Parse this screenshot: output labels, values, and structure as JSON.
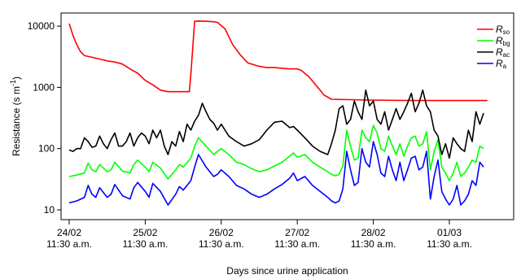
{
  "chart_data": {
    "type": "line",
    "xlabel": "Days since urine application",
    "ylabel": "Resistance (s m",
    "ylabel_sup": "-1",
    "ylabel_close": ")",
    "yscale": "log",
    "ylim": [
      8,
      12000
    ],
    "xlim": [
      -0.05,
      5.5
    ],
    "grid": false,
    "legend_position": "top-right",
    "x_ticks": [
      {
        "pos": 0,
        "date": "24/02",
        "time": "11:30 a.m."
      },
      {
        "pos": 1,
        "date": "25/02",
        "time": "11:30 a.m."
      },
      {
        "pos": 2,
        "date": "26/02",
        "time": "11:30 a.m."
      },
      {
        "pos": 3,
        "date": "27/02",
        "time": "11:30 a.m."
      },
      {
        "pos": 4,
        "date": "28/02",
        "time": "11:30 a.m."
      },
      {
        "pos": 5,
        "date": "01/03",
        "time": "11:30 a.m."
      }
    ],
    "y_ticks": [
      10,
      100,
      1000,
      10000
    ],
    "y_tick_labels": [
      "10",
      "100",
      "1000",
      "10000"
    ],
    "series": [
      {
        "name": "R",
        "subscript": "so",
        "color": "#ff0000",
        "x": [
          0.0,
          0.05,
          0.1,
          0.15,
          0.2,
          0.3,
          0.4,
          0.5,
          0.6,
          0.7,
          0.8,
          0.9,
          1.0,
          1.1,
          1.2,
          1.3,
          1.35,
          1.4,
          1.5,
          1.58,
          1.6,
          1.65,
          1.7,
          1.8,
          1.9,
          1.95,
          2.05,
          2.15,
          2.25,
          2.35,
          2.5,
          2.6,
          2.7,
          2.8,
          2.9,
          3.0,
          3.05,
          3.15,
          3.3,
          3.35,
          3.45,
          3.7,
          3.9,
          4.5,
          5.5
        ],
        "y": [
          11000,
          7000,
          5000,
          3800,
          3300,
          3100,
          2900,
          2700,
          2600,
          2400,
          2000,
          1700,
          1300,
          1100,
          900,
          850,
          850,
          850,
          850,
          850,
          1600,
          12000,
          12100,
          12000,
          11800,
          11500,
          9000,
          5000,
          3400,
          2500,
          2200,
          2100,
          2100,
          2050,
          2000,
          2000,
          1900,
          1500,
          900,
          750,
          640,
          630,
          620,
          610,
          610
        ]
      },
      {
        "name": "R",
        "subscript": "bg",
        "color": "#00ff00",
        "x": [
          0.0,
          0.1,
          0.2,
          0.25,
          0.3,
          0.35,
          0.4,
          0.5,
          0.55,
          0.6,
          0.7,
          0.8,
          0.85,
          0.9,
          1.0,
          1.05,
          1.1,
          1.2,
          1.3,
          1.4,
          1.45,
          1.5,
          1.6,
          1.65,
          1.7,
          1.8,
          1.9,
          1.95,
          2.0,
          2.1,
          2.2,
          2.3,
          2.4,
          2.5,
          2.6,
          2.7,
          2.8,
          2.9,
          2.95,
          3.0,
          3.1,
          3.2,
          3.3,
          3.4,
          3.45,
          3.5,
          3.55,
          3.6,
          3.65,
          3.7,
          3.75,
          3.8,
          3.85,
          3.9,
          3.95,
          4.0,
          4.05,
          4.1,
          4.15,
          4.2,
          4.25,
          4.3,
          4.35,
          4.4,
          4.45,
          4.5,
          4.55,
          4.6,
          4.65,
          4.7,
          4.75,
          4.8,
          4.85,
          4.9,
          4.95,
          5.0,
          5.05,
          5.1,
          5.15,
          5.2,
          5.25,
          5.3,
          5.35,
          5.4,
          5.45
        ],
        "y": [
          35,
          37,
          40,
          58,
          45,
          42,
          55,
          42,
          45,
          60,
          43,
          40,
          55,
          65,
          50,
          42,
          60,
          48,
          32,
          45,
          55,
          50,
          70,
          110,
          150,
          110,
          80,
          90,
          100,
          80,
          60,
          55,
          47,
          42,
          45,
          52,
          60,
          75,
          85,
          72,
          80,
          60,
          50,
          42,
          38,
          36,
          38,
          52,
          200,
          110,
          65,
          70,
          200,
          150,
          130,
          240,
          180,
          100,
          90,
          160,
          110,
          80,
          120,
          75,
          110,
          150,
          160,
          110,
          120,
          190,
          45,
          90,
          140,
          50,
          40,
          30,
          40,
          60,
          35,
          40,
          50,
          65,
          60,
          110,
          100
        ]
      },
      {
        "name": "R",
        "subscript": "ac",
        "color": "#000000",
        "x": [
          0.0,
          0.05,
          0.1,
          0.15,
          0.2,
          0.25,
          0.3,
          0.35,
          0.4,
          0.45,
          0.5,
          0.55,
          0.6,
          0.65,
          0.7,
          0.75,
          0.8,
          0.85,
          0.9,
          0.95,
          1.0,
          1.05,
          1.1,
          1.15,
          1.2,
          1.25,
          1.3,
          1.35,
          1.4,
          1.45,
          1.5,
          1.55,
          1.6,
          1.65,
          1.7,
          1.75,
          1.8,
          1.85,
          1.9,
          1.95,
          2.0,
          2.1,
          2.2,
          2.3,
          2.4,
          2.5,
          2.6,
          2.7,
          2.8,
          2.9,
          2.95,
          3.0,
          3.1,
          3.2,
          3.3,
          3.4,
          3.45,
          3.5,
          3.55,
          3.6,
          3.65,
          3.7,
          3.75,
          3.8,
          3.85,
          3.9,
          3.95,
          4.0,
          4.05,
          4.1,
          4.15,
          4.2,
          4.25,
          4.3,
          4.35,
          4.4,
          4.45,
          4.5,
          4.55,
          4.6,
          4.65,
          4.7,
          4.75,
          4.8,
          4.85,
          4.9,
          4.95,
          5.0,
          5.05,
          5.1,
          5.15,
          5.2,
          5.25,
          5.3,
          5.35,
          5.4,
          5.45
        ],
        "y": [
          95,
          90,
          100,
          100,
          150,
          130,
          105,
          110,
          160,
          120,
          100,
          140,
          180,
          110,
          110,
          130,
          180,
          110,
          150,
          180,
          160,
          120,
          200,
          150,
          200,
          110,
          80,
          130,
          110,
          190,
          130,
          250,
          200,
          280,
          350,
          550,
          400,
          300,
          260,
          200,
          250,
          160,
          130,
          110,
          120,
          140,
          200,
          270,
          280,
          220,
          230,
          200,
          150,
          110,
          90,
          80,
          120,
          200,
          450,
          500,
          250,
          300,
          600,
          400,
          300,
          900,
          500,
          600,
          300,
          250,
          400,
          200,
          300,
          450,
          300,
          400,
          550,
          800,
          400,
          550,
          900,
          500,
          400,
          200,
          160,
          80,
          120,
          70,
          150,
          120,
          100,
          90,
          200,
          130,
          400,
          250,
          380
        ]
      },
      {
        "name": "R",
        "subscript": "a",
        "color": "#0000ff",
        "x": [
          0.0,
          0.1,
          0.2,
          0.25,
          0.3,
          0.35,
          0.4,
          0.5,
          0.55,
          0.6,
          0.7,
          0.8,
          0.85,
          0.9,
          1.0,
          1.05,
          1.1,
          1.2,
          1.3,
          1.4,
          1.45,
          1.5,
          1.6,
          1.65,
          1.7,
          1.8,
          1.9,
          1.95,
          2.0,
          2.1,
          2.2,
          2.3,
          2.4,
          2.5,
          2.6,
          2.7,
          2.8,
          2.9,
          2.95,
          3.0,
          3.1,
          3.2,
          3.3,
          3.4,
          3.45,
          3.5,
          3.55,
          3.6,
          3.65,
          3.7,
          3.75,
          3.8,
          3.85,
          3.9,
          3.95,
          4.0,
          4.05,
          4.1,
          4.15,
          4.2,
          4.25,
          4.3,
          4.35,
          4.4,
          4.45,
          4.5,
          4.55,
          4.6,
          4.65,
          4.7,
          4.75,
          4.8,
          4.85,
          4.9,
          4.95,
          5.0,
          5.05,
          5.1,
          5.15,
          5.2,
          5.25,
          5.3,
          5.35,
          5.4,
          5.45
        ],
        "y": [
          13,
          14,
          16,
          25,
          18,
          16,
          23,
          16,
          18,
          26,
          17,
          15,
          23,
          28,
          20,
          16,
          27,
          20,
          12,
          18,
          24,
          21,
          30,
          50,
          80,
          50,
          35,
          38,
          45,
          35,
          25,
          22,
          18,
          16,
          18,
          22,
          26,
          33,
          40,
          30,
          35,
          25,
          20,
          16,
          14,
          13,
          14,
          22,
          90,
          45,
          25,
          28,
          100,
          60,
          50,
          130,
          80,
          40,
          35,
          75,
          45,
          30,
          60,
          30,
          45,
          70,
          75,
          45,
          50,
          90,
          15,
          35,
          65,
          20,
          15,
          12,
          15,
          25,
          12,
          14,
          18,
          30,
          25,
          60,
          50
        ]
      }
    ]
  }
}
